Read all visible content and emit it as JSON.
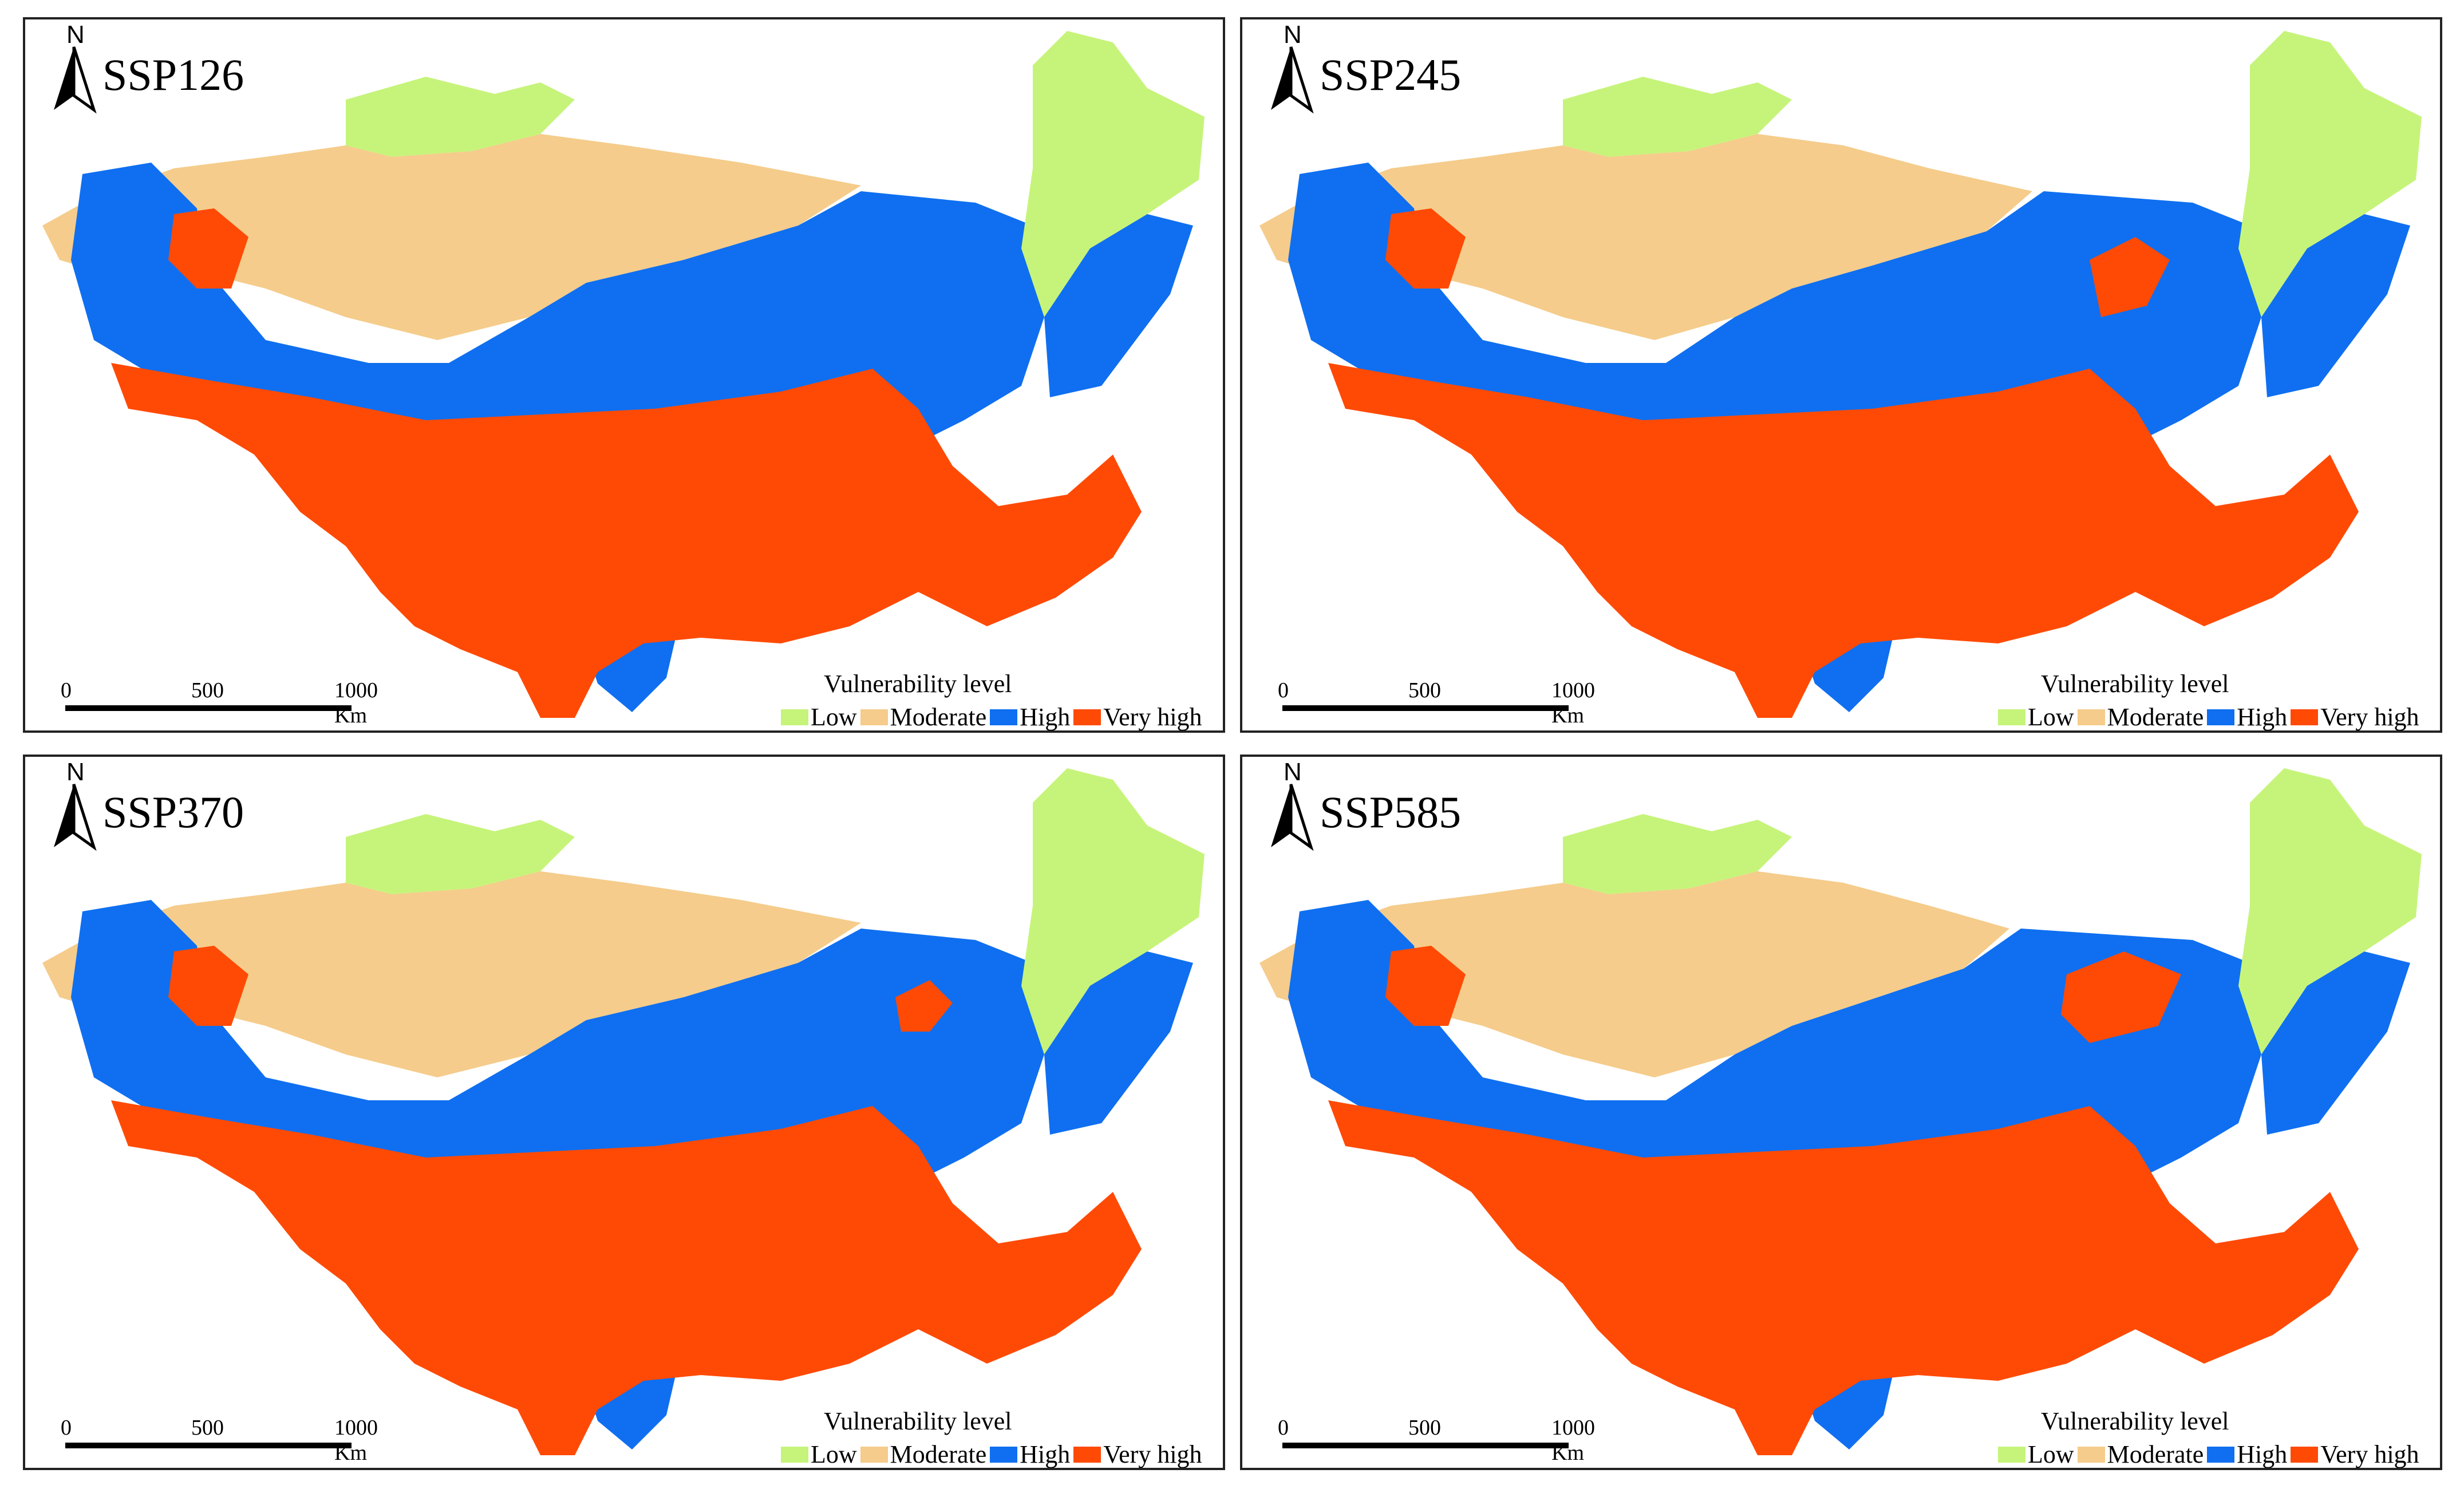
{
  "figure": {
    "panels": [
      {
        "scenario": "SSP126"
      },
      {
        "scenario": "SSP245"
      },
      {
        "scenario": "SSP370"
      },
      {
        "scenario": "SSP585"
      }
    ],
    "north_label": "N",
    "scale_bar": {
      "ticks": [
        "0",
        "500",
        "1000 Km"
      ]
    },
    "legend": {
      "title": "Vulnerability level",
      "items": [
        {
          "label": "Low",
          "color": "#c6f47a"
        },
        {
          "label": "Moderate",
          "color": "#f5cc8b"
        },
        {
          "label": "High",
          "color": "#0f6ff0"
        },
        {
          "label": "Very high",
          "color": "#ff4a05"
        }
      ]
    }
  }
}
